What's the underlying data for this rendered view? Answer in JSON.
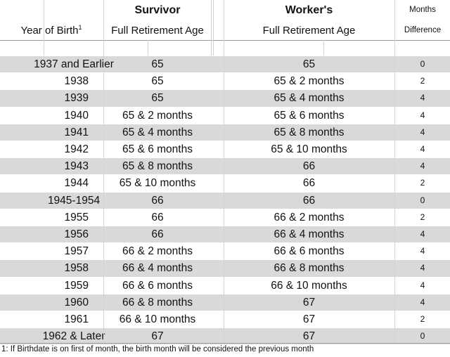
{
  "header": {
    "survivor_title": "Survivor",
    "worker_title": "Worker's",
    "months_title": "Months",
    "year_label": "Year of Birth",
    "year_sup": "1",
    "survivor_sub": "Full Retirement Age",
    "worker_sub": "Full Retirement Age",
    "months_sub": "Difference"
  },
  "rows": [
    {
      "year": "1937 and Earlier",
      "survivor": "65",
      "worker": "65",
      "diff": "0"
    },
    {
      "year": "1938",
      "survivor": "65",
      "worker": "65 & 2 months",
      "diff": "2"
    },
    {
      "year": "1939",
      "survivor": "65",
      "worker": "65 & 4 months",
      "diff": "4"
    },
    {
      "year": "1940",
      "survivor": "65 & 2 months",
      "worker": "65 & 6 months",
      "diff": "4"
    },
    {
      "year": "1941",
      "survivor": "65 & 4 months",
      "worker": "65 & 8 months",
      "diff": "4"
    },
    {
      "year": "1942",
      "survivor": "65 & 6 months",
      "worker": "65 & 10 months",
      "diff": "4"
    },
    {
      "year": "1943",
      "survivor": "65 & 8 months",
      "worker": "66",
      "diff": "4"
    },
    {
      "year": "1944",
      "survivor": "65 & 10 months",
      "worker": "66",
      "diff": "2"
    },
    {
      "year": "1945-1954",
      "survivor": "66",
      "worker": "66",
      "diff": "0"
    },
    {
      "year": "1955",
      "survivor": "66",
      "worker": "66 & 2 months",
      "diff": "2"
    },
    {
      "year": "1956",
      "survivor": "66",
      "worker": "66 & 4 months",
      "diff": "4"
    },
    {
      "year": "1957",
      "survivor": "66 & 2 months",
      "worker": "66 & 6 months",
      "diff": "4"
    },
    {
      "year": "1958",
      "survivor": "66 & 4 months",
      "worker": "66 & 8 months",
      "diff": "4"
    },
    {
      "year": "1959",
      "survivor": "66 & 6 months",
      "worker": "66 & 10 months",
      "diff": "4"
    },
    {
      "year": "1960",
      "survivor": "66 & 8 months",
      "worker": "67",
      "diff": "4"
    },
    {
      "year": "1961",
      "survivor": "66 & 10 months",
      "worker": "67",
      "diff": "2"
    },
    {
      "year": "1962 & Later",
      "survivor": "67",
      "worker": "67",
      "diff": "0"
    }
  ],
  "footnote": "1: If Birthdate is on first of month, the birth month will be considered the previous month",
  "colors": {
    "shade": "#d9d9d9",
    "gridline": "#d4d4d4"
  }
}
